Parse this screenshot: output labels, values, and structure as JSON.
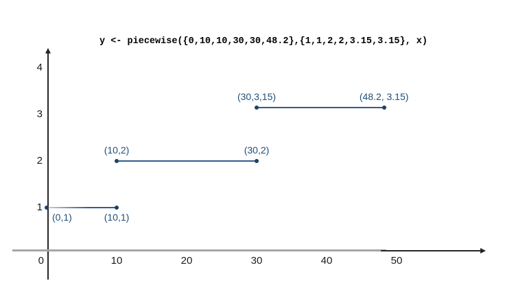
{
  "chart_data": {
    "type": "line",
    "title": "y <- piecewise({0,10,10,30,30,48.2},{1,1,2,2,3.15,3.15}, x)",
    "xlabel": "",
    "ylabel": "",
    "xlim": [
      0,
      57
    ],
    "ylim": [
      0,
      4.3
    ],
    "grid": false,
    "legend": "none",
    "segments": [
      {
        "x1": 0,
        "x2": 10,
        "y": 1,
        "start_label": "(0,1)",
        "end_label": "(10,1)",
        "label_side": "below",
        "fade_start": true
      },
      {
        "x1": 10,
        "x2": 30,
        "y": 2,
        "start_label": "(10,2)",
        "end_label": "(30,2)",
        "label_side": "above",
        "fade_start": false
      },
      {
        "x1": 30,
        "x2": 48.2,
        "y": 3.15,
        "start_label": "(30,3,15)",
        "end_label": "(48.2, 3.15)",
        "label_side": "above",
        "fade_start": false
      }
    ],
    "x_ticks": [
      {
        "value": 10,
        "label": "10"
      },
      {
        "value": 20,
        "label": "20"
      },
      {
        "value": 30,
        "label": "30"
      },
      {
        "value": 40,
        "label": "40"
      },
      {
        "value": 50,
        "label": "50"
      }
    ],
    "y_ticks": [
      {
        "value": 1,
        "label": "1"
      },
      {
        "value": 2,
        "label": "2"
      },
      {
        "value": 3,
        "label": "3"
      },
      {
        "value": 4,
        "label": "4"
      }
    ],
    "origin_label": "0",
    "colors": {
      "segment_line": "#2e5c8a",
      "segment_fade": "#c3d2e0",
      "point": "#1f4163",
      "label": "#1f4e79",
      "axis_gray": "#a6a6a6",
      "axis_black": "#262626",
      "tick": "#1a1a1a",
      "title": "#000000"
    }
  }
}
